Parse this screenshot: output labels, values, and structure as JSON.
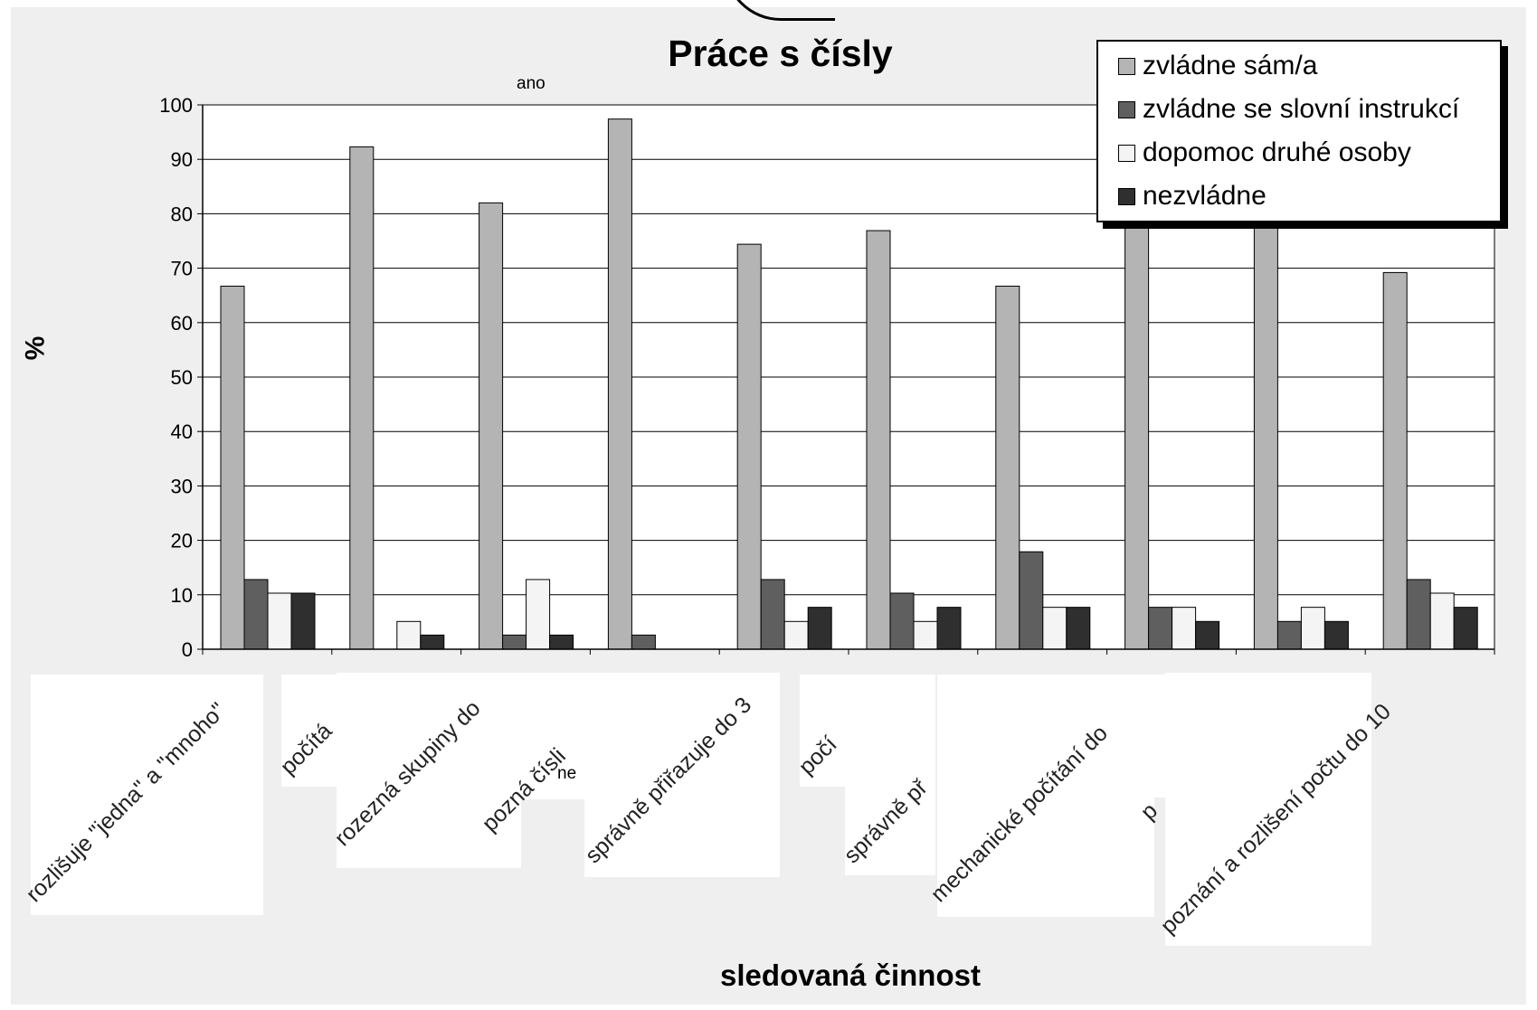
{
  "chart_data": {
    "type": "bar",
    "title": "Práce s čísly",
    "xlabel": "sledovaná činnost",
    "ylabel": "%",
    "ylim": [
      0,
      100
    ],
    "yticks": [
      "0",
      "10",
      "20",
      "30",
      "40",
      "50",
      "60",
      "70",
      "80",
      "90",
      "100"
    ],
    "grid": true,
    "legend_position": "top-right",
    "annotations": [
      "ano",
      "ne"
    ],
    "categories": [
      "rozlišuje \"jedna\" a \"mnoho\"",
      "počítá",
      "rozezná skupiny do",
      "pozná čísli",
      "správně přiřazuje do 3",
      "počí",
      "správně př",
      "mechanické počítání do",
      "p",
      "poznání a rozlišení počtu do 10"
    ],
    "series": [
      {
        "name": "zvládne sám/a",
        "color": "#b4b4b4",
        "values": [
          66.7,
          92.3,
          82.0,
          97.4,
          74.4,
          76.9,
          66.7,
          84.6,
          84.6,
          69.2
        ]
      },
      {
        "name": "zvládne se slovní instrukcí",
        "color": "#5f5f5f",
        "values": [
          12.8,
          0,
          2.6,
          2.6,
          12.8,
          10.3,
          17.9,
          7.7,
          5.1,
          12.8
        ]
      },
      {
        "name": "dopomoc druhé osoby",
        "color": "#f4f4f4",
        "values": [
          10.3,
          5.1,
          12.8,
          0,
          5.1,
          5.1,
          7.7,
          7.7,
          7.7,
          10.3
        ]
      },
      {
        "name": "nezvládne",
        "color": "#2f2f2f",
        "values": [
          10.3,
          2.6,
          2.6,
          0,
          7.7,
          7.7,
          7.7,
          5.1,
          5.1,
          7.7
        ]
      }
    ]
  }
}
